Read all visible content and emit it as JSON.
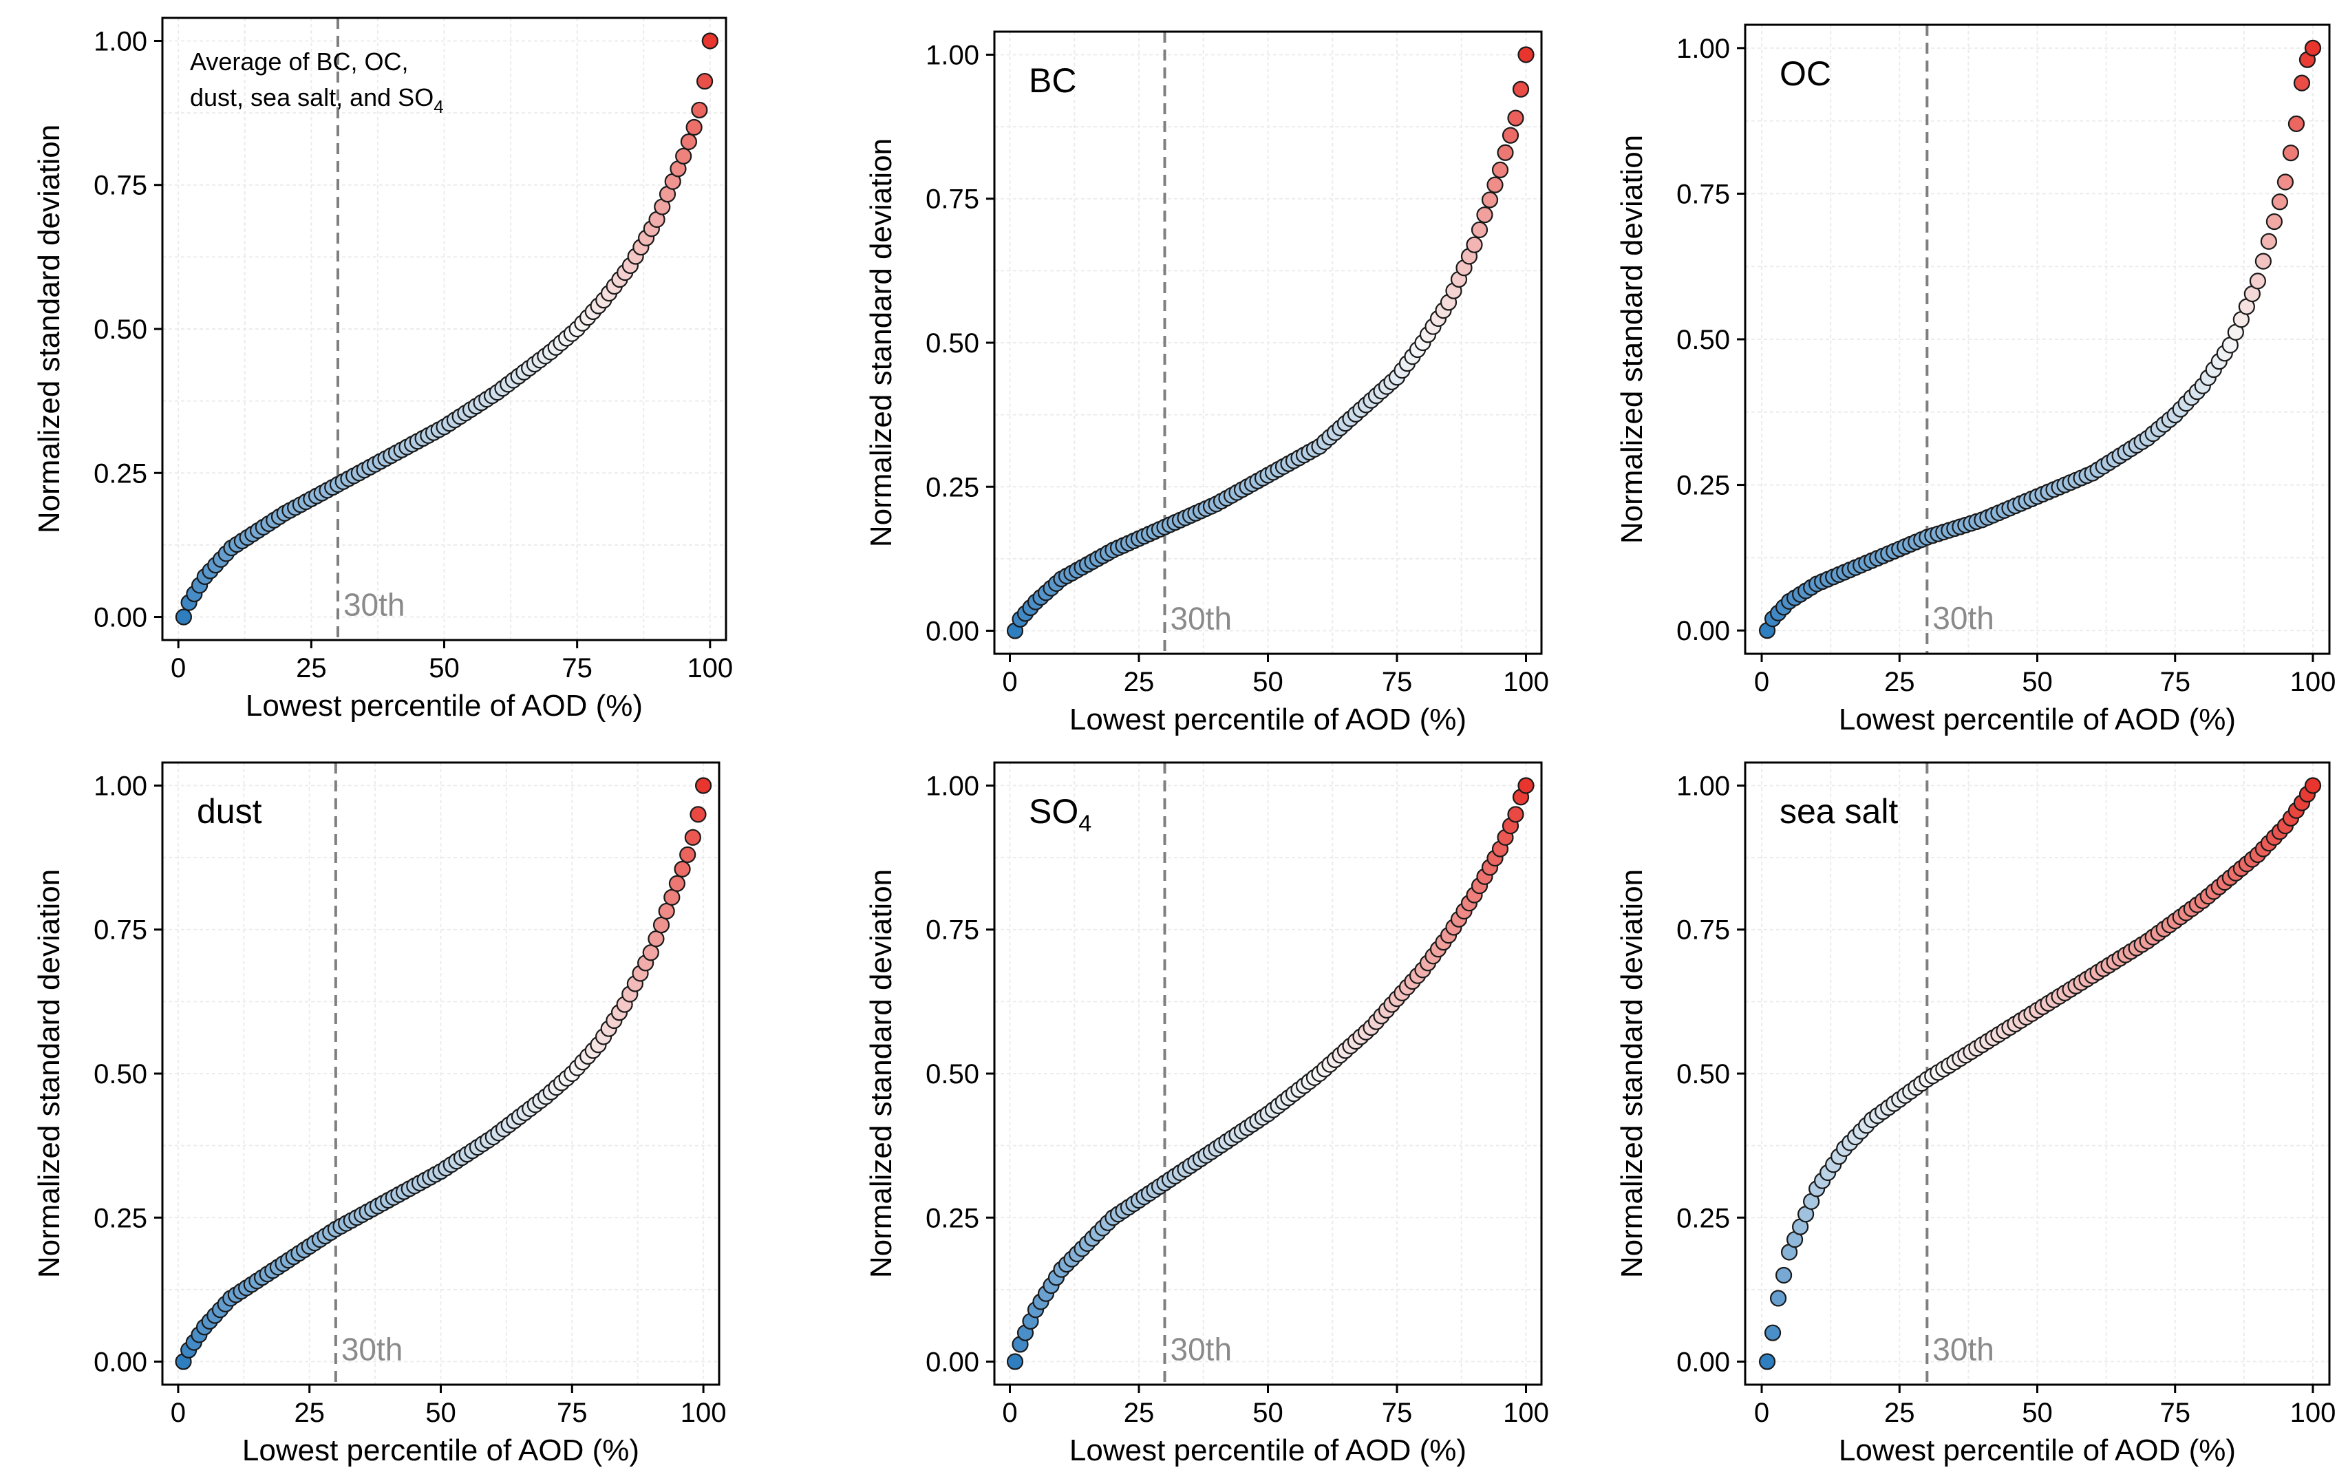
{
  "figure": {
    "xlabel": "Lowest percentile of AOD (%)",
    "ylabel": "Normalized standard deviation",
    "xticks": [
      "0",
      "25",
      "50",
      "75",
      "100"
    ],
    "yticks": [
      "0.00",
      "0.25",
      "0.50",
      "0.75",
      "1.00"
    ],
    "reference_line": {
      "x": 30,
      "label": "30th"
    },
    "color_low": "#2f7ec0",
    "color_mid": "#f7f7f7",
    "color_high": "#e8352e"
  },
  "chart_data": [
    {
      "type": "scatter",
      "title": "Average of BC, OC,",
      "title_line2": "dust, sea salt, and SO",
      "title_line2_sub": "4",
      "xlabel": "Lowest percentile of AOD (%)",
      "ylabel": "Normalized standard deviation",
      "xlim": [
        0,
        100
      ],
      "ylim": [
        0,
        1
      ],
      "x_start": 1,
      "x_end": 100,
      "n_points": 100,
      "curve_x": [
        1,
        2,
        5,
        10,
        20,
        30,
        40,
        50,
        60,
        70,
        75,
        80,
        85,
        90,
        95,
        97,
        98,
        99,
        100
      ],
      "curve_y": [
        0.0,
        0.025,
        0.07,
        0.12,
        0.18,
        0.23,
        0.28,
        0.33,
        0.39,
        0.46,
        0.5,
        0.55,
        0.61,
        0.69,
        0.8,
        0.85,
        0.88,
        0.93,
        1.0
      ]
    },
    {
      "type": "scatter",
      "title": "BC",
      "xlabel": "Lowest percentile of AOD (%)",
      "ylabel": "Normalized standard deviation",
      "xlim": [
        0,
        100
      ],
      "ylim": [
        0,
        1
      ],
      "x_start": 1,
      "x_end": 100,
      "n_points": 100,
      "curve_x": [
        1,
        2,
        5,
        10,
        20,
        30,
        40,
        50,
        60,
        70,
        75,
        80,
        85,
        90,
        95,
        97,
        98,
        99,
        100
      ],
      "curve_y": [
        0.0,
        0.02,
        0.05,
        0.09,
        0.14,
        0.18,
        0.22,
        0.27,
        0.32,
        0.4,
        0.44,
        0.5,
        0.57,
        0.67,
        0.8,
        0.86,
        0.89,
        0.94,
        1.0
      ]
    },
    {
      "type": "scatter",
      "title": "OC",
      "xlabel": "Lowest percentile of AOD (%)",
      "ylabel": "Normalized standard deviation",
      "xlim": [
        0,
        100
      ],
      "ylim": [
        0,
        1
      ],
      "x_start": 1,
      "x_end": 100,
      "n_points": 100,
      "curve_x": [
        1,
        2,
        5,
        10,
        20,
        30,
        40,
        50,
        60,
        70,
        75,
        80,
        85,
        90,
        95,
        97,
        98,
        99,
        100
      ],
      "curve_y": [
        0.0,
        0.02,
        0.05,
        0.08,
        0.12,
        0.16,
        0.19,
        0.23,
        0.27,
        0.33,
        0.37,
        0.42,
        0.49,
        0.6,
        0.77,
        0.87,
        0.94,
        0.98,
        1.0
      ]
    },
    {
      "type": "scatter",
      "title": "dust",
      "xlabel": "Lowest percentile of AOD (%)",
      "ylabel": "Normalized standard deviation",
      "xlim": [
        0,
        100
      ],
      "ylim": [
        0,
        1
      ],
      "x_start": 1,
      "x_end": 100,
      "n_points": 100,
      "curve_x": [
        1,
        2,
        5,
        10,
        20,
        30,
        40,
        50,
        60,
        70,
        75,
        80,
        85,
        90,
        95,
        97,
        98,
        99,
        100
      ],
      "curve_y": [
        0.0,
        0.02,
        0.06,
        0.11,
        0.17,
        0.23,
        0.28,
        0.33,
        0.39,
        0.46,
        0.5,
        0.55,
        0.62,
        0.71,
        0.83,
        0.88,
        0.91,
        0.95,
        1.0
      ]
    },
    {
      "type": "scatter",
      "title": "SO",
      "title_sub": "4",
      "xlabel": "Lowest percentile of AOD (%)",
      "ylabel": "Normalized standard deviation",
      "xlim": [
        0,
        100
      ],
      "ylim": [
        0,
        1
      ],
      "x_start": 1,
      "x_end": 100,
      "n_points": 100,
      "curve_x": [
        1,
        2,
        5,
        10,
        20,
        30,
        40,
        50,
        60,
        70,
        75,
        80,
        85,
        90,
        95,
        97,
        98,
        99,
        100
      ],
      "curve_y": [
        0.0,
        0.03,
        0.09,
        0.16,
        0.25,
        0.31,
        0.37,
        0.43,
        0.5,
        0.58,
        0.63,
        0.68,
        0.74,
        0.81,
        0.89,
        0.93,
        0.95,
        0.98,
        1.0
      ]
    },
    {
      "type": "scatter",
      "title": "sea salt",
      "xlabel": "Lowest percentile of AOD (%)",
      "ylabel": "Normalized standard deviation",
      "xlim": [
        0,
        100
      ],
      "ylim": [
        0,
        1
      ],
      "x_start": 1,
      "x_end": 100,
      "n_points": 100,
      "curve_x": [
        1,
        2,
        3,
        5,
        10,
        15,
        20,
        30,
        40,
        50,
        60,
        70,
        80,
        90,
        95,
        98,
        100
      ],
      "curve_y": [
        0.0,
        0.05,
        0.11,
        0.19,
        0.3,
        0.37,
        0.42,
        0.49,
        0.55,
        0.61,
        0.67,
        0.73,
        0.8,
        0.88,
        0.93,
        0.97,
        1.0
      ]
    }
  ]
}
